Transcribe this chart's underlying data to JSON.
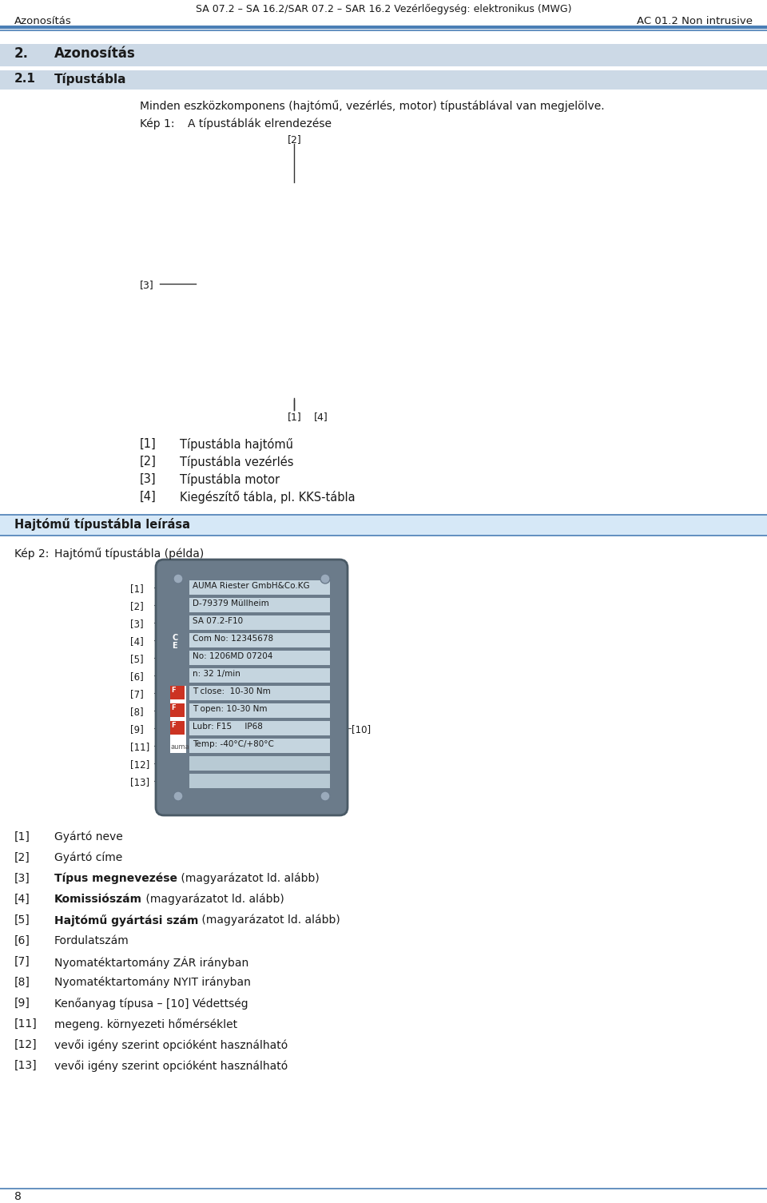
{
  "header_title": "SA 07.2 – SA 16.2/SAR 07.2 – SAR 16.2 Vezérlőegység: elektronikus (MWG)",
  "header_subtitle": "AC 01.2 Non intrusive",
  "header_left": "Azonosítás",
  "header_line_color": "#4a7eb5",
  "section_num": "2.",
  "section_title": "Azonosítás",
  "subsection_num": "2.1",
  "subsection_title": "Típustábla",
  "intro_text": "Minden eszközkomponens (hajtómű, vezérlés, motor) típustáblával van megjelölve.",
  "kep1_label": "Kép 1:",
  "kep1_title": "A típustáblák elrendezése",
  "list1": [
    {
      "num": "[1]",
      "text": "Típustábla hajtómű"
    },
    {
      "num": "[2]",
      "text": "Típustábla vezérlés"
    },
    {
      "num": "[3]",
      "text": "Típustábla motor"
    },
    {
      "num": "[4]",
      "text": "Kiegészítő tábla, pl. KKS-tábla"
    }
  ],
  "section_banner": "Hajtómű típustábla leírása",
  "kep2_label": "Kép 2:",
  "kep2_title": "Hajtómű típustábla (példa)",
  "nameplate_rows": [
    {
      "text": "AUMA Riester GmbH&Co.KG",
      "has_rivet_left": true
    },
    {
      "text": "D-79379 Müllheim",
      "has_rivet_left": false
    },
    {
      "text": "SA 07.2-F10",
      "has_rivet_left": false,
      "has_ce": true
    },
    {
      "text": "Com No: 12345678",
      "has_rivet_left": false
    },
    {
      "text": "No: 1206MD 07204",
      "has_rivet_left": false
    },
    {
      "text": "n: 32 1/min",
      "has_rivet_left": false
    },
    {
      "text": "T close:  10-30 Nm",
      "has_rivet_left": false,
      "has_f": true
    },
    {
      "text": "T open: 10-30 Nm",
      "has_rivet_left": false,
      "has_f": true
    },
    {
      "text": "Lubr: F15     IP68",
      "has_rivet_left": false,
      "has_f": true
    },
    {
      "text": "Temp: -40°C/+80°C",
      "has_rivet_left": false,
      "has_f": true
    },
    {
      "text": "",
      "has_rivet_left": false
    },
    {
      "text": "",
      "has_rivet_left": false
    }
  ],
  "nameplate_ref_nums": [
    "[1]",
    "[2]",
    "[3]",
    "[4]",
    "[5]",
    "[6]",
    "[7]",
    "[8]",
    "[9]",
    "[11]",
    "[12]",
    "[13]"
  ],
  "ref10_label": "[10]",
  "list2": [
    {
      "num": "[1]",
      "bold": "",
      "normal": "Gyártó neve"
    },
    {
      "num": "[2]",
      "bold": "",
      "normal": "Gyártó címe"
    },
    {
      "num": "[3]",
      "bold": "Típus megnevezése",
      "normal": " (magyarázatot ld. alább)"
    },
    {
      "num": "[4]",
      "bold": "Komissiószám",
      "normal": " (magyarázatot ld. alább)"
    },
    {
      "num": "[5]",
      "bold": "Hajtómű gyártási szám",
      "normal": " (magyarázatot ld. alább)"
    },
    {
      "num": "[6]",
      "bold": "",
      "normal": "Fordulatszám"
    },
    {
      "num": "[7]",
      "bold": "",
      "normal": "Nyomatéktartomány ZÁR irányban"
    },
    {
      "num": "[8]",
      "bold": "",
      "normal": "Nyomatéktartomány NYIT irányban"
    },
    {
      "num": "[9]",
      "bold": "",
      "normal": "Kenőanyag típusa – [10] Védettség"
    },
    {
      "num": "[11]",
      "bold": "",
      "normal": "megeng. környezeti hőmérséklet"
    },
    {
      "num": "[12]",
      "bold": "",
      "normal": "vevői igény szerint opcióként használható"
    },
    {
      "num": "[13]",
      "bold": "",
      "normal": "vevői igény szerint opcióként használható"
    }
  ],
  "footer_number": "8",
  "blue": "#4a7eb5",
  "section_bg": "#ccd9e6",
  "banner_bg": "#d6e8f7",
  "np_outer_bg": "#6b7b8a",
  "np_row_bg": "#b8cad4",
  "np_row_bg2": "#c5d5df"
}
